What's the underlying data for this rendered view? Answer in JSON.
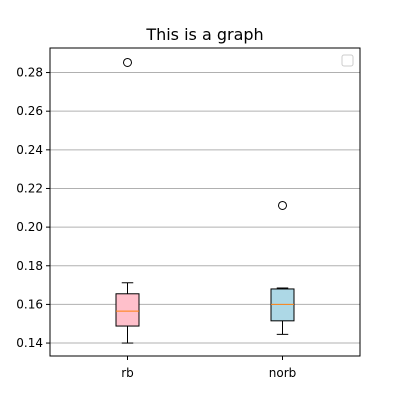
{
  "chart_data": {
    "type": "box",
    "title": "This is a graph",
    "xlabel": "",
    "ylabel": "",
    "categories": [
      "rb",
      "norb"
    ],
    "ylim": [
      0.1333,
      0.2927
    ],
    "yticks": [
      0.14,
      0.16,
      0.18,
      0.2,
      0.22,
      0.24,
      0.26,
      0.28
    ],
    "ytick_labels": [
      "0.14",
      "0.16",
      "0.18",
      "0.20",
      "0.22",
      "0.24",
      "0.26",
      "0.28"
    ],
    "grid": "y",
    "legend": "top-right (empty)",
    "boxes": [
      {
        "category": "rb",
        "whisker_low": 0.14,
        "q1": 0.1488,
        "median": 0.1565,
        "q3": 0.1655,
        "whisker_high": 0.1712,
        "fliers": [
          0.2852
        ],
        "fill": "#ffc0cb"
      },
      {
        "category": "norb",
        "whisker_low": 0.1445,
        "q1": 0.1515,
        "median": 0.16,
        "q3": 0.168,
        "whisker_high": 0.1685,
        "fliers": [
          0.2112
        ],
        "fill": "#add8e6"
      }
    ],
    "median_color": "#ff7f0e",
    "grid_color": "#b0b0b0"
  }
}
